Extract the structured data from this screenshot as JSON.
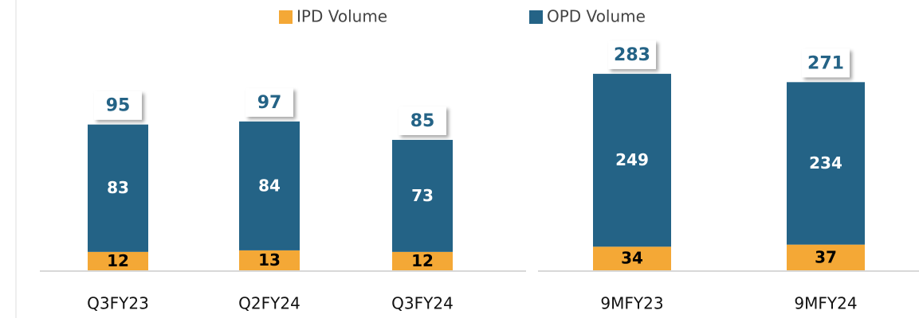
{
  "chart_data": [
    {
      "type": "stacked_bar",
      "categories": [
        "Q3FY23",
        "Q2FY24",
        "Q3FY24"
      ],
      "series": [
        {
          "name": "IPD Volume",
          "color": "#f4a836",
          "values": [
            12,
            13,
            12
          ]
        },
        {
          "name": "OPD Volume",
          "color": "#246386",
          "values": [
            83,
            84,
            73
          ]
        }
      ],
      "totals": [
        95,
        97,
        85
      ],
      "ylim": [
        0,
        100
      ]
    },
    {
      "type": "stacked_bar",
      "categories": [
        "9MFY23",
        "9MFY24"
      ],
      "series": [
        {
          "name": "IPD Volume",
          "color": "#f4a836",
          "values": [
            34,
            37
          ]
        },
        {
          "name": "OPD Volume",
          "color": "#246386",
          "values": [
            249,
            234
          ]
        }
      ],
      "totals": [
        283,
        271
      ],
      "ylim": [
        0,
        300
      ]
    }
  ]
}
